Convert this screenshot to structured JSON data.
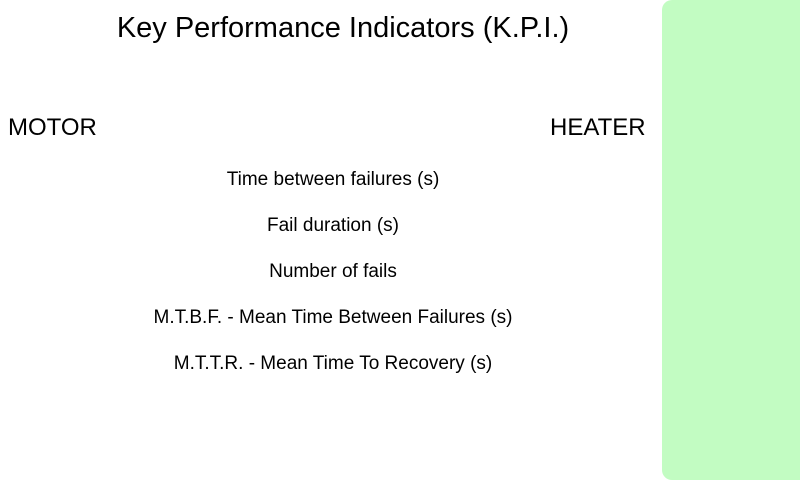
{
  "header": {
    "title": "Key Performance Indicators (K.P.I.)"
  },
  "devices": {
    "motor": "MOTOR",
    "heater": "HEATER"
  },
  "kpis": [
    {
      "label": "Time between failures (s)"
    },
    {
      "label": "Fail duration (s)"
    },
    {
      "label": "Number of fails"
    },
    {
      "label": "M.T.B.F. - Mean Time Between Failures (s)"
    },
    {
      "label": "M.T.T.R. - Mean Time To Recovery (s)"
    }
  ],
  "colors": {
    "side_panel": "#c2fcc2",
    "background": "#ffffff",
    "text": "#000000"
  }
}
